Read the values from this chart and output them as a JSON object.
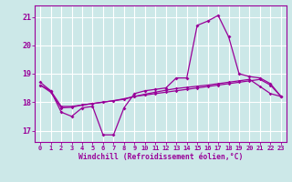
{
  "xlabel": "Windchill (Refroidissement éolien,°C)",
  "bg_color": "#cce8e8",
  "grid_color": "#ffffff",
  "line_color": "#990099",
  "x": [
    0,
    1,
    2,
    3,
    4,
    5,
    6,
    7,
    8,
    9,
    10,
    11,
    12,
    13,
    14,
    15,
    16,
    17,
    18,
    19,
    20,
    21,
    22,
    23
  ],
  "y_main": [
    18.7,
    18.4,
    17.65,
    17.5,
    17.8,
    17.85,
    16.85,
    16.85,
    17.8,
    18.3,
    18.4,
    18.45,
    18.5,
    18.85,
    18.85,
    20.7,
    20.85,
    21.05,
    20.3,
    19.0,
    18.9,
    18.85,
    18.65,
    18.2
  ],
  "y_smooth1": [
    18.6,
    18.4,
    17.85,
    17.85,
    17.9,
    17.95,
    18.0,
    18.05,
    18.1,
    18.2,
    18.25,
    18.3,
    18.35,
    18.4,
    18.45,
    18.5,
    18.55,
    18.6,
    18.65,
    18.7,
    18.75,
    18.8,
    18.6,
    18.2
  ],
  "y_smooth2": [
    18.6,
    18.35,
    17.8,
    17.82,
    17.9,
    17.95,
    18.0,
    18.05,
    18.12,
    18.2,
    18.28,
    18.35,
    18.42,
    18.48,
    18.52,
    18.56,
    18.6,
    18.65,
    18.7,
    18.75,
    18.8,
    18.55,
    18.3,
    18.2
  ],
  "ylim": [
    16.6,
    21.4
  ],
  "xlim": [
    -0.5,
    23.5
  ],
  "yticks": [
    17,
    18,
    19,
    20,
    21
  ],
  "xticks": [
    0,
    1,
    2,
    3,
    4,
    5,
    6,
    7,
    8,
    9,
    10,
    11,
    12,
    13,
    14,
    15,
    16,
    17,
    18,
    19,
    20,
    21,
    22,
    23
  ]
}
